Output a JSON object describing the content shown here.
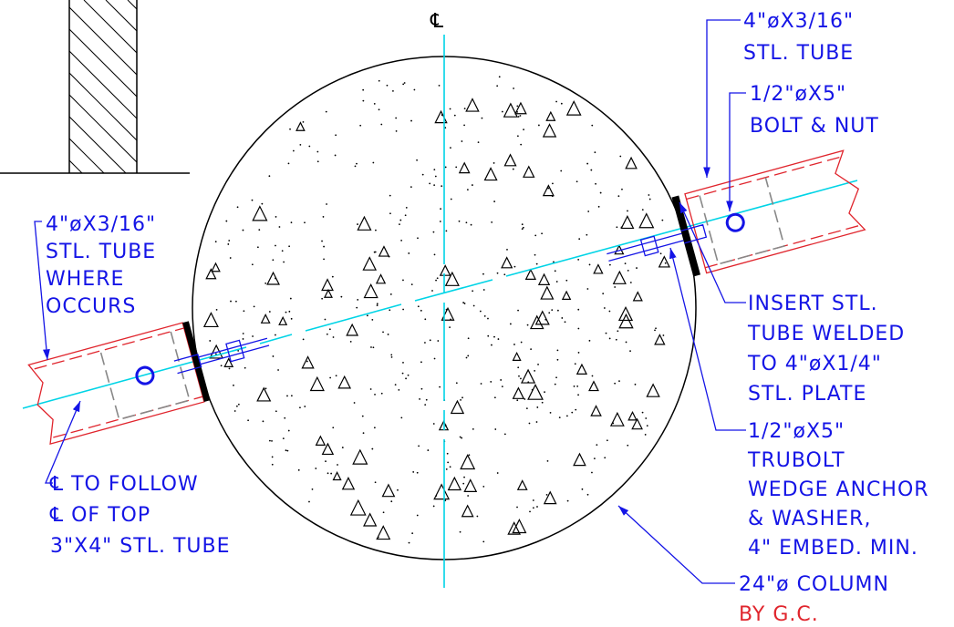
{
  "centerline_mark": "℄",
  "labels": [
    {
      "lines": [
        "4\"øX3/16\"",
        "STL. TUBE"
      ]
    },
    {
      "lines": [
        "1/2\"øX5\"",
        "BOLT & NUT"
      ]
    },
    {
      "lines": [
        "4\"øX3/16\"",
        "STL. TUBE",
        "WHERE",
        "OCCURS"
      ]
    },
    {
      "lines": [
        "INSERT STL.",
        "TUBE WELDED",
        "TO 4\"øX1/4\"",
        "STL. PLATE"
      ]
    },
    {
      "lines": [
        "1/2\"øX5\"",
        "TRUBOLT",
        "WEDGE ANCHOR",
        "& WASHER,",
        "4\" EMBED. MIN."
      ]
    },
    {
      "lines": [
        "℄ TO FOLLOW",
        "℄ OF TOP",
        "3\"X4\" STL. TUBE"
      ]
    },
    {
      "lines": [
        "24\"ø COLUMN",
        "BY G.C."
      ]
    }
  ]
}
